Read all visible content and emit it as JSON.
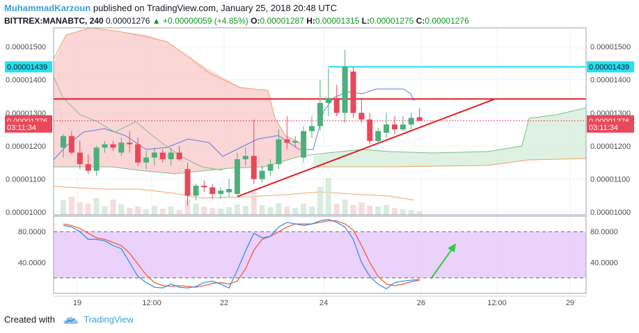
{
  "header": {
    "author": "MuhammadKarzoun",
    "published": "published on TradingView.com, January 25, 2018 20:48 UTC",
    "symbol": "BITTREX:MANABTC, 240",
    "last": "0.00001276",
    "change": "▲ +0.00000059 (+4.85%)",
    "o_label": "O:",
    "o_value": "0.00001287",
    "h_label": "H:",
    "h_value": "0.00001315",
    "l_label": "L:",
    "l_value": "0.00001275",
    "c_label": "C:",
    "c_value": "0.00001276"
  },
  "footer": {
    "created_with": "Created with",
    "brand": "TradingView"
  },
  "colors": {
    "up": "#4caf7c",
    "down": "#e8485a",
    "cloud_bear": "#f8c8c8",
    "cloud_bull": "#d8eedd",
    "trend": "#e01e24",
    "cyan": "#27e0f0",
    "stoch_fill": "#e6c7fb",
    "stoch_k": "#3a8ee6",
    "stoch_d": "#f25c3a",
    "arrow": "#2ecc40"
  },
  "chart_data": [
    {
      "type": "candlestick",
      "price_scale_labels": [
        "0.00001500",
        "0.00001400",
        "0.00001300",
        "0.00001200",
        "0.00001100",
        "0.00001000"
      ],
      "price_ticks": [
        1.5e-05,
        1.4e-05,
        1.3e-05,
        1.2e-05,
        1.1e-05,
        1e-05
      ],
      "ylim": [
        9.92e-06,
        1.557e-05
      ],
      "x_ticks": [
        "19",
        "12:00",
        "22",
        "24",
        "26",
        "12:00",
        "29"
      ],
      "markers": [
        {
          "label": "0.00001439",
          "value": 1.439e-05,
          "color": "#27e0f0"
        },
        {
          "label": "0.00001276",
          "value": 1.276e-05,
          "color": "#e8485a"
        },
        {
          "label": "03:11:34",
          "value": 1.257e-05,
          "color": "#e8485a"
        }
      ],
      "candles": [
        {
          "o": 1.195e-05,
          "h": 1.235e-05,
          "l": 1.165e-05,
          "c": 1.23e-05
        },
        {
          "o": 1.23e-05,
          "h": 1.245e-05,
          "l": 1.175e-05,
          "c": 1.18e-05
        },
        {
          "o": 1.18e-05,
          "h": 1.215e-05,
          "l": 1.13e-05,
          "c": 1.145e-05
        },
        {
          "o": 1.145e-05,
          "h": 1.175e-05,
          "l": 1.115e-05,
          "c": 1.125e-05
        },
        {
          "o": 1.125e-05,
          "h": 1.2e-05,
          "l": 1.11e-05,
          "c": 1.195e-05
        },
        {
          "o": 1.195e-05,
          "h": 1.215e-05,
          "l": 1.18e-05,
          "c": 1.205e-05
        },
        {
          "o": 1.205e-05,
          "h": 1.215e-05,
          "l": 1.185e-05,
          "c": 1.195e-05
        },
        {
          "o": 1.18e-05,
          "h": 1.225e-05,
          "l": 1.17e-05,
          "c": 1.21e-05
        },
        {
          "o": 1.21e-05,
          "h": 1.245e-05,
          "l": 1.18e-05,
          "c": 1.205e-05
        },
        {
          "o": 1.205e-05,
          "h": 1.225e-05,
          "l": 1.14e-05,
          "c": 1.15e-05
        },
        {
          "o": 1.15e-05,
          "h": 1.185e-05,
          "l": 1.13e-05,
          "c": 1.165e-05
        },
        {
          "o": 1.165e-05,
          "h": 1.195e-05,
          "l": 1.14e-05,
          "c": 1.18e-05
        },
        {
          "o": 1.18e-05,
          "h": 1.19e-05,
          "l": 1.15e-05,
          "c": 1.16e-05
        },
        {
          "o": 1.16e-05,
          "h": 1.195e-05,
          "l": 1.14e-05,
          "c": 1.18e-05
        },
        {
          "o": 1.18e-05,
          "h": 1.2e-05,
          "l": 1.155e-05,
          "c": 1.16e-05
        },
        {
          "o": 1.13e-05,
          "h": 1.15e-05,
          "l": 1.02e-05,
          "c": 1.05e-05
        },
        {
          "o": 1.05e-05,
          "h": 1.085e-05,
          "l": 1.035e-05,
          "c": 1.08e-05
        },
        {
          "o": 1.08e-05,
          "h": 1.095e-05,
          "l": 1.06e-05,
          "c": 1.075e-05
        },
        {
          "o": 1.075e-05,
          "h": 1.085e-05,
          "l": 1.04e-05,
          "c": 1.055e-05
        },
        {
          "o": 1.055e-05,
          "h": 1.075e-05,
          "l": 1.04e-05,
          "c": 1.065e-05
        },
        {
          "o": 1.06e-05,
          "h": 1.1e-05,
          "l": 1.045e-05,
          "c": 1.07e-05
        },
        {
          "o": 1.055e-05,
          "h": 1.18e-05,
          "l": 1.05e-05,
          "c": 1.16e-05
        },
        {
          "o": 1.16e-05,
          "h": 1.195e-05,
          "l": 1.14e-05,
          "c": 1.17e-05
        },
        {
          "o": 1.17e-05,
          "h": 1.28e-05,
          "l": 1.085e-05,
          "c": 1.1e-05
        },
        {
          "o": 1.1e-05,
          "h": 1.14e-05,
          "l": 1.09e-05,
          "c": 1.125e-05
        },
        {
          "o": 1.125e-05,
          "h": 1.16e-05,
          "l": 1.11e-05,
          "c": 1.145e-05
        },
        {
          "o": 1.145e-05,
          "h": 1.25e-05,
          "l": 1.13e-05,
          "c": 1.22e-05
        },
        {
          "o": 1.22e-05,
          "h": 1.29e-05,
          "l": 1.19e-05,
          "c": 1.21e-05
        },
        {
          "o": 1.21e-05,
          "h": 1.23e-05,
          "l": 1.195e-05,
          "c": 1.215e-05
        },
        {
          "o": 1.165e-05,
          "h": 1.26e-05,
          "l": 1.15e-05,
          "c": 1.245e-05
        },
        {
          "o": 1.245e-05,
          "h": 1.29e-05,
          "l": 1.225e-05,
          "c": 1.26e-05
        },
        {
          "o": 1.26e-05,
          "h": 1.4e-05,
          "l": 1.245e-05,
          "c": 1.33e-05
        },
        {
          "o": 1.33e-05,
          "h": 1.435e-05,
          "l": 1.29e-05,
          "c": 1.345e-05
        },
        {
          "o": 1.345e-05,
          "h": 1.385e-05,
          "l": 1.29e-05,
          "c": 1.3e-05
        },
        {
          "o": 1.3e-05,
          "h": 1.49e-05,
          "l": 1.27e-05,
          "c": 1.44e-05
        },
        {
          "o": 1.425e-05,
          "h": 1.44e-05,
          "l": 1.285e-05,
          "c": 1.3e-05
        },
        {
          "o": 1.3e-05,
          "h": 1.34e-05,
          "l": 1.27e-05,
          "c": 1.28e-05
        },
        {
          "o": 1.28e-05,
          "h": 1.3e-05,
          "l": 1.205e-05,
          "c": 1.215e-05
        },
        {
          "o": 1.215e-05,
          "h": 1.255e-05,
          "l": 1.205e-05,
          "c": 1.245e-05
        },
        {
          "o": 1.24e-05,
          "h": 1.3e-05,
          "l": 1.225e-05,
          "c": 1.265e-05
        },
        {
          "o": 1.265e-05,
          "h": 1.29e-05,
          "l": 1.235e-05,
          "c": 1.25e-05
        },
        {
          "o": 1.25e-05,
          "h": 1.29e-05,
          "l": 1.245e-05,
          "c": 1.265e-05
        },
        {
          "o": 1.265e-05,
          "h": 1.3e-05,
          "l": 1.25e-05,
          "c": 1.285e-05
        },
        {
          "o": 1.287e-05,
          "h": 1.315e-05,
          "l": 1.275e-05,
          "c": 1.276e-05
        }
      ],
      "volume": [
        0.21,
        0.26,
        0.18,
        0.16,
        0.24,
        0.12,
        0.22,
        0.15,
        0.1,
        0.12,
        0.08,
        0.13,
        0.09,
        0.12,
        0.07,
        0.22,
        0.16,
        0.12,
        0.1,
        0.09,
        0.11,
        0.15,
        0.13,
        0.33,
        0.14,
        0.11,
        0.17,
        0.12,
        0.1,
        0.16,
        0.12,
        0.4,
        0.53,
        0.16,
        0.22,
        0.14,
        0.18,
        0.13,
        0.12,
        0.14,
        0.1,
        0.08,
        0.07,
        0.05
      ],
      "horizontal_line": {
        "value": 1.342e-05,
        "color": "#e01e24"
      },
      "cyan_line": {
        "value": 1.439e-05,
        "from_index": 32
      },
      "trendline": {
        "from": {
          "index": 21,
          "value": 1.047e-05
        },
        "to": {
          "index": 52,
          "value": 1.341e-05
        }
      }
    },
    {
      "type": "line",
      "indicator": "stochastic",
      "scale_labels": [
        "80.0000",
        "40.0000"
      ],
      "ticks": [
        80,
        40
      ],
      "ylim": [
        0,
        100
      ],
      "bands": [
        80,
        20
      ],
      "k": [
        88,
        86,
        80,
        70,
        70,
        68,
        62,
        58,
        40,
        22,
        14,
        8,
        7,
        12,
        8,
        7,
        9,
        14,
        16,
        12,
        7,
        30,
        55,
        78,
        72,
        74,
        86,
        92,
        90,
        88,
        90,
        94,
        96,
        92,
        86,
        70,
        40,
        22,
        12,
        6,
        14,
        16,
        17,
        18
      ],
      "d": [
        90,
        88,
        84,
        78,
        72,
        70,
        66,
        62,
        52,
        38,
        24,
        14,
        10,
        9,
        10,
        9,
        8,
        10,
        13,
        14,
        12,
        16,
        32,
        56,
        70,
        74,
        80,
        86,
        90,
        90,
        90,
        92,
        94,
        94,
        90,
        82,
        62,
        40,
        22,
        12,
        10,
        12,
        15,
        17
      ]
    }
  ]
}
